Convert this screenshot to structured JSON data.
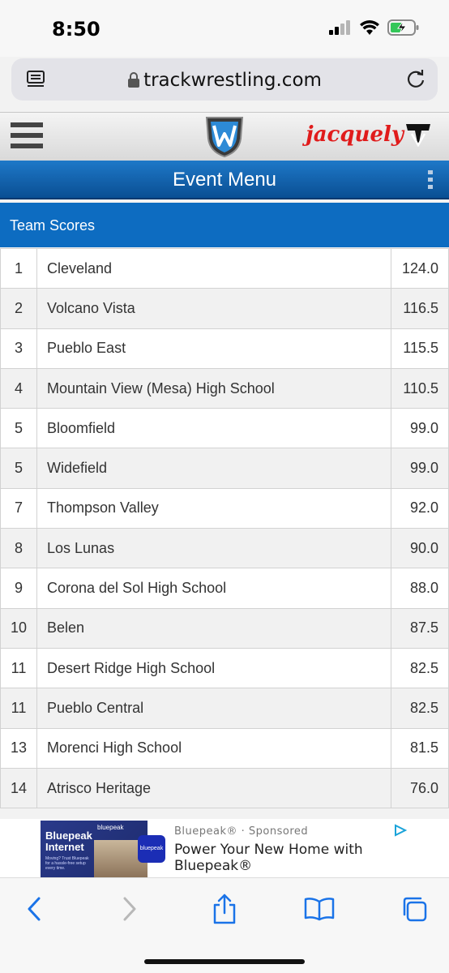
{
  "status_bar": {
    "time": "8:50"
  },
  "browser": {
    "url": "trackwrestling.com"
  },
  "header": {
    "brand": "jacquely"
  },
  "event_menu": {
    "title": "Event Menu"
  },
  "team_scores": {
    "title": "Team Scores",
    "rows": [
      {
        "rank": "1",
        "team": "Cleveland",
        "score": "124.0"
      },
      {
        "rank": "2",
        "team": "Volcano Vista",
        "score": "116.5"
      },
      {
        "rank": "3",
        "team": "Pueblo East",
        "score": "115.5"
      },
      {
        "rank": "4",
        "team": "Mountain View (Mesa) High School",
        "score": "110.5"
      },
      {
        "rank": "5",
        "team": "Bloomfield",
        "score": "99.0"
      },
      {
        "rank": "5",
        "team": "Widefield",
        "score": "99.0"
      },
      {
        "rank": "7",
        "team": "Thompson Valley",
        "score": "92.0"
      },
      {
        "rank": "8",
        "team": "Los Lunas",
        "score": "90.0"
      },
      {
        "rank": "9",
        "team": "Corona del Sol High School",
        "score": "88.0"
      },
      {
        "rank": "10",
        "team": "Belen",
        "score": "87.5"
      },
      {
        "rank": "11",
        "team": "Desert Ridge High School",
        "score": "82.5"
      },
      {
        "rank": "11",
        "team": "Pueblo Central",
        "score": "82.5"
      },
      {
        "rank": "13",
        "team": "Morenci High School",
        "score": "81.5"
      },
      {
        "rank": "14",
        "team": "Atrisco Heritage",
        "score": "76.0"
      }
    ]
  },
  "ad": {
    "sponsor": "Bluepeak® · Sponsored",
    "headline": "Power Your New Home with Bluepeak®",
    "image_title": "Bluepeak Internet",
    "image_brand": "bluepeak",
    "image_small": "Moving? Trust Bluepeak for a hassle-free setup every time.",
    "logo_text": "bluepeak"
  },
  "colors": {
    "accent": "#0d6cc1",
    "brand_red": "#e01b1b",
    "ios_blue": "#1a73e8"
  },
  "icons": [
    "signal-icon",
    "wifi-icon",
    "battery-charging-icon",
    "reader-icon",
    "lock-icon",
    "reload-icon",
    "menu-icon",
    "more-vertical-icon",
    "ad-choices-icon",
    "back-icon",
    "forward-icon",
    "share-icon",
    "bookmarks-icon",
    "tabs-icon"
  ]
}
